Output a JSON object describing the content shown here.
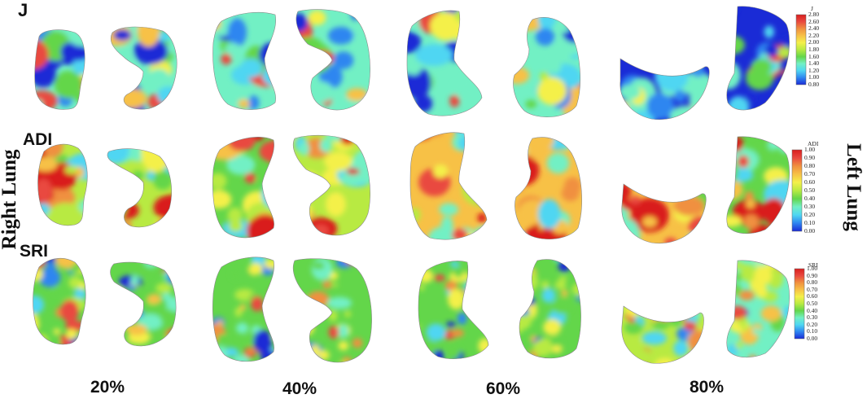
{
  "figure": {
    "row_labels": [
      "J",
      "ADI",
      "SRI"
    ],
    "column_labels": [
      "20%",
      "40%",
      "60%",
      "80%"
    ],
    "side_labels": {
      "left": "Right Lung",
      "right": "Left Lung"
    },
    "colorbars": [
      {
        "title": "J",
        "ticks": [
          "2.80",
          "2.60",
          "2.40",
          "2.20",
          "2.00",
          "1.80",
          "1.60",
          "1.40",
          "1.20",
          "1.00",
          "0.80"
        ]
      },
      {
        "title": "ADI",
        "ticks": [
          "1.00",
          "0.90",
          "0.80",
          "0.70",
          "0.60",
          "0.50",
          "0.40",
          "0.30",
          "0.20",
          "0.10",
          "0.00"
        ]
      },
      {
        "title": "SRI",
        "ticks": [
          "1.00",
          "0.90",
          "0.80",
          "0.70",
          "0.60",
          "0.50",
          "0.40",
          "0.30",
          "0.20",
          "0.10",
          "0.00"
        ]
      }
    ],
    "colormap": [
      "#1a2bd6",
      "#2f86f0",
      "#4fd6f2",
      "#72f0c4",
      "#63d64a",
      "#b8ea42",
      "#f4f04a",
      "#f7c146",
      "#f0903f",
      "#e9493f",
      "#d91e1e"
    ]
  }
}
